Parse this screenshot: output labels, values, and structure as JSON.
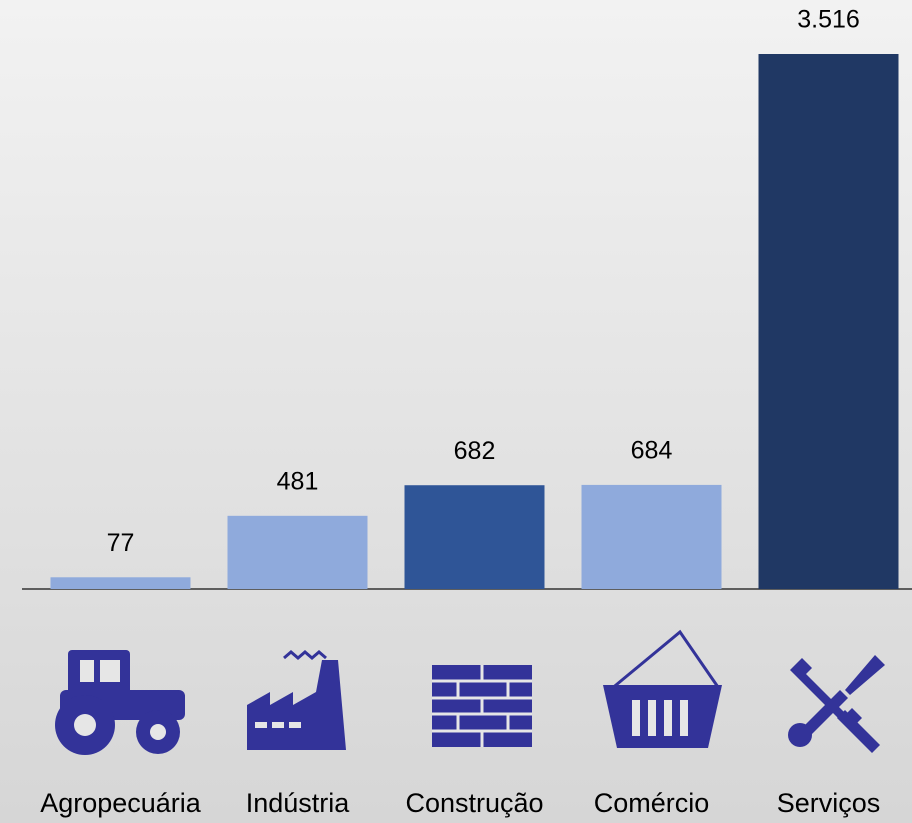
{
  "chart_data": {
    "type": "bar",
    "categories": [
      "Agropecuária",
      "Indústria",
      "Construção",
      "Comércio",
      "Serviços"
    ],
    "values": [
      77,
      481,
      682,
      684,
      3516
    ],
    "value_labels": [
      "77",
      "481",
      "682",
      "684",
      "3.516"
    ],
    "colors": [
      "#8faadc",
      "#8faadc",
      "#2f5597",
      "#8faadc",
      "#203864"
    ]
  }
}
